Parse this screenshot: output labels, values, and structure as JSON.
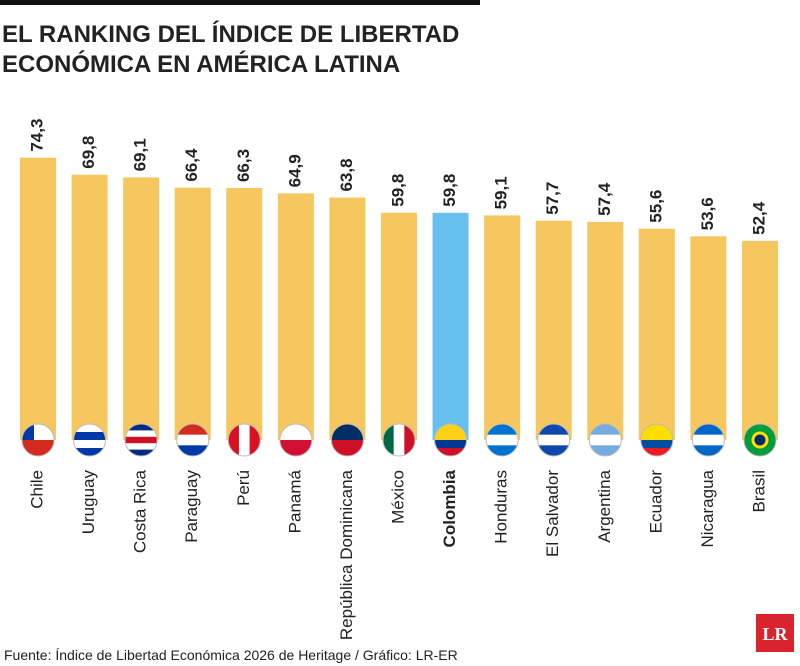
{
  "chart_data": {
    "type": "bar",
    "title": [
      "EL RANKING DEL ÍNDICE DE LIBERTAD",
      "ECONÓMICA EN AMÉRICA LATINA"
    ],
    "categories": [
      "Chile",
      "Uruguay",
      "Costa Rica",
      "Paraguay",
      "Perú",
      "Panamá",
      "República Dominicana",
      "México",
      "Colombia",
      "Honduras",
      "El Salvador",
      "Argentina",
      "Ecuador",
      "Nicaragua",
      "Brasil"
    ],
    "values": [
      74.3,
      69.8,
      69.1,
      66.4,
      66.3,
      64.9,
      63.8,
      59.8,
      59.8,
      59.1,
      57.7,
      57.4,
      55.6,
      53.6,
      52.4
    ],
    "value_labels": [
      "74,3",
      "69,8",
      "69,1",
      "66,4",
      "66,3",
      "64,9",
      "63,8",
      "59,8",
      "59,8",
      "59,1",
      "57,7",
      "57,4",
      "55,6",
      "53,6",
      "52,4"
    ],
    "colors": [
      "#f6c65f",
      "#f6c65f",
      "#f6c65f",
      "#f6c65f",
      "#f6c65f",
      "#f6c65f",
      "#f6c65f",
      "#f6c65f",
      "#66c1ef",
      "#f6c65f",
      "#f6c65f",
      "#f6c65f",
      "#f6c65f",
      "#f6c65f",
      "#f6c65f"
    ],
    "source": "Fuente: Índice de Libertad Económica 2026 de Heritage / Gráfico: LR-ER",
    "logo": "LR"
  }
}
